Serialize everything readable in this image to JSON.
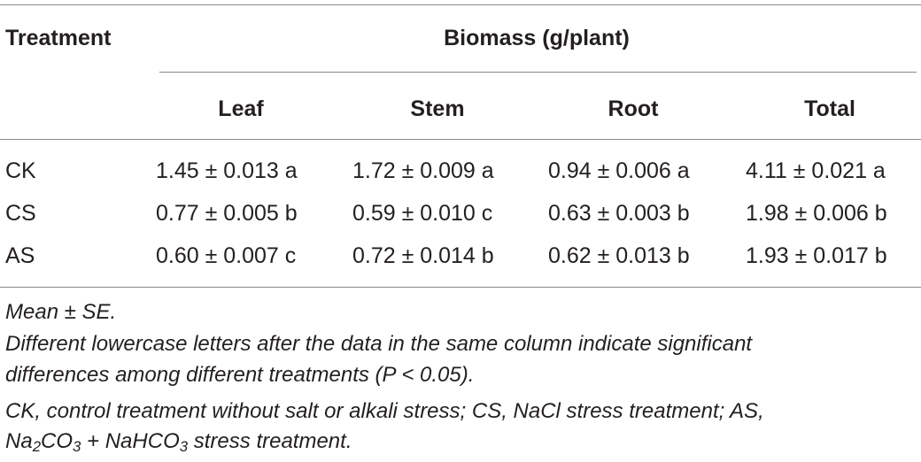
{
  "table": {
    "treatment_header": "Treatment",
    "group_header": "Biomass (g/plant)",
    "columns": [
      "Leaf",
      "Stem",
      "Root",
      "Total"
    ],
    "rows": [
      {
        "label": "CK",
        "cells": [
          "1.45 ± 0.013 a",
          "1.72 ± 0.009 a",
          "0.94 ± 0.006 a",
          "4.11 ± 0.021 a"
        ]
      },
      {
        "label": "CS",
        "cells": [
          "0.77 ± 0.005 b",
          "0.59 ± 0.010 c",
          "0.63 ± 0.003 b",
          "1.98 ± 0.006 b"
        ]
      },
      {
        "label": "AS",
        "cells": [
          "0.60 ± 0.007 c",
          "0.72 ± 0.014 b",
          "0.62 ± 0.013 b",
          "1.93 ± 0.017 b"
        ]
      }
    ]
  },
  "footnotes": {
    "line1": "Mean ± SE.",
    "line2": "Different lowercase letters after the data in the same column indicate significant",
    "line3": "differences among different treatments (P < 0.05).",
    "line4": "CK, control treatment without salt or alkali stress; CS, NaCl stress treatment; AS,",
    "line5_parts": [
      "Na",
      "2",
      "CO",
      "3",
      " + NaHCO",
      "3",
      " stress treatment."
    ]
  }
}
